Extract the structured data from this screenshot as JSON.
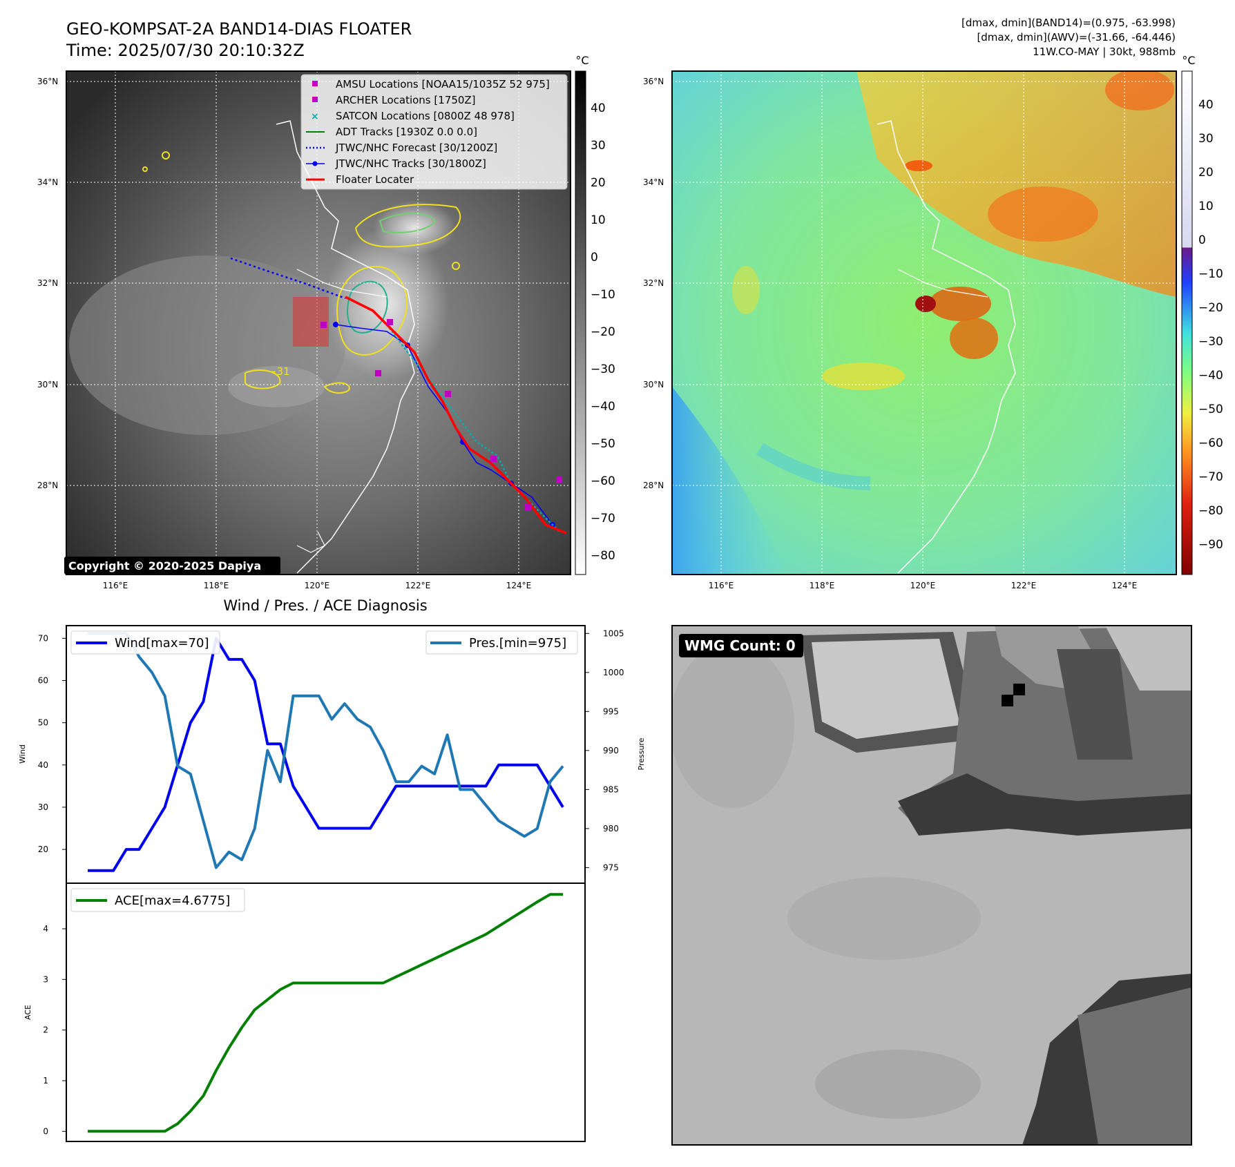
{
  "header": {
    "title": "GEO-KOMPSAT-2A BAND14-DIAS FLOATER",
    "time": "Time: 2025/07/30 20:10:32Z",
    "stats_line1": "[dmax, dmin](BAND14)=(0.975, -63.998)",
    "stats_line2": "[dmax, dmin](AWV)=(-31.66, -64.446)",
    "stats_line3": "11W.CO-MAY | 30kt, 988mb"
  },
  "maps": {
    "lat_labels": [
      "36°N",
      "34°N",
      "32°N",
      "30°N",
      "28°N"
    ],
    "lon_labels": [
      "116°E",
      "118°E",
      "120°E",
      "122°E",
      "124°E"
    ],
    "copyright": "Copyright © 2020-2025 Dapiya",
    "contour_label": "−31",
    "cb1_unit": "°C",
    "cb1_ticks": [
      "40",
      "30",
      "20",
      "10",
      "0",
      "−10",
      "−20",
      "−30",
      "−40",
      "−50",
      "−60",
      "−70",
      "−80"
    ],
    "cb2_unit": "°C",
    "cb2_ticks": [
      "40",
      "30",
      "20",
      "10",
      "0",
      "−10",
      "−20",
      "−30",
      "−40",
      "−50",
      "−60",
      "−70",
      "−80",
      "−90"
    ],
    "legend": [
      {
        "label": "AMSU Locations [NOAA15/1035Z 52 975]",
        "color": "#c000c0"
      },
      {
        "label": "ARCHER Locations [1750Z]",
        "color": "#c000c0"
      },
      {
        "label": "SATCON Locations [0800Z 48 978]",
        "color": "#00b0b0"
      },
      {
        "label": "ADT Tracks [1930Z 0.0 0.0]",
        "color": "#008000"
      },
      {
        "label": "JTWC/NHC Forecast [30/1200Z]",
        "color": "#0000ff"
      },
      {
        "label": "JTWC/NHC Tracks [30/1800Z]",
        "color": "#0000ff"
      },
      {
        "label": "Floater Locater",
        "color": "#ff0000"
      }
    ]
  },
  "wmg": {
    "label": "WMG Count: 0"
  },
  "chart_data": [
    {
      "type": "line",
      "title": "Wind / Pres. / ACE Diagnosis",
      "ylabel": "Wind",
      "ylabel_right": "Pressure",
      "ylim": [
        12,
        73
      ],
      "ylim_right": [
        973,
        1006
      ],
      "yticks": [
        "70",
        "60",
        "50",
        "40",
        "30",
        "20"
      ],
      "yticks_right": [
        "1005",
        "1000",
        "995",
        "990",
        "985",
        "980",
        "975"
      ],
      "series": [
        {
          "name": "Wind[max=70]",
          "color": "#0000ee",
          "values": [
            15,
            15,
            15,
            20,
            20,
            25,
            30,
            40,
            50,
            55,
            70,
            65,
            65,
            60,
            45,
            45,
            35,
            30,
            25,
            25,
            25,
            25,
            25,
            30,
            35,
            35,
            35,
            35,
            35,
            35,
            35,
            35,
            40,
            40,
            40,
            40,
            35,
            30
          ]
        },
        {
          "name": "Pres.[min=975]",
          "color": "#1f77b4",
          "axis": "right",
          "values": [
            1005,
            1005,
            1005,
            1005,
            1002,
            1000,
            997,
            988,
            987,
            981,
            975,
            977,
            976,
            980,
            990,
            986,
            997,
            997,
            997,
            994,
            996,
            994,
            993,
            990,
            986,
            986,
            988,
            987,
            992,
            985,
            985,
            983,
            981,
            980,
            979,
            980,
            986,
            988
          ]
        }
      ]
    },
    {
      "type": "line",
      "ylabel": "ACE",
      "ylim": [
        -0.2,
        4.9
      ],
      "yticks": [
        "4",
        "3",
        "2",
        "1",
        "0"
      ],
      "series": [
        {
          "name": "ACE[max=4.6775]",
          "color": "#008000",
          "values": [
            0,
            0,
            0,
            0,
            0,
            0,
            0,
            0.15,
            0.4,
            0.7,
            1.2,
            1.65,
            2.05,
            2.4,
            2.6,
            2.8,
            2.93,
            2.93,
            2.93,
            2.93,
            2.93,
            2.93,
            2.93,
            2.93,
            3.05,
            3.17,
            3.29,
            3.41,
            3.53,
            3.65,
            3.77,
            3.89,
            4.05,
            4.21,
            4.37,
            4.53,
            4.6775,
            4.6775
          ]
        }
      ]
    }
  ]
}
